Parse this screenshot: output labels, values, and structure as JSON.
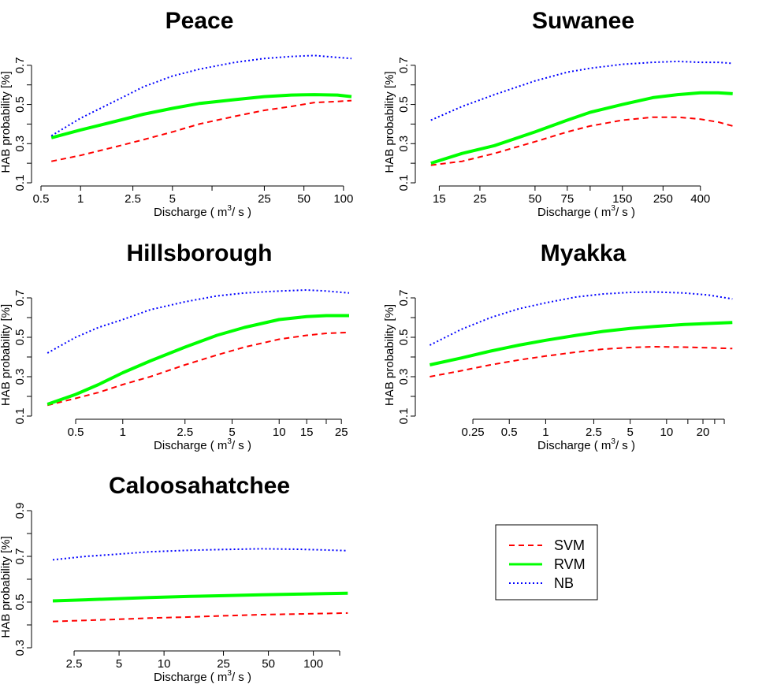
{
  "chart_data": [
    {
      "type": "line",
      "title": "Peace",
      "xlabel": "Discharge ( m3/ s )",
      "ylabel": "HAB probability [%]",
      "x_scale": "log",
      "xlim": [
        0.5,
        115
      ],
      "ylim": [
        0.1,
        0.8
      ],
      "xticks": [
        0.5,
        1,
        2.5,
        5,
        10,
        25,
        50,
        100
      ],
      "xtick_labels": [
        "0.5",
        "1",
        "2.5",
        "5",
        "",
        "25",
        "50",
        "100"
      ],
      "yticks": [
        0.1,
        0.2,
        0.3,
        0.4,
        0.5,
        0.6,
        0.7
      ],
      "ytick_labels": [
        "0.1",
        "",
        "0.3",
        "",
        "0.5",
        "",
        "0.7"
      ],
      "x": [
        0.6,
        1,
        2,
        3,
        5,
        8,
        15,
        25,
        40,
        60,
        90,
        115
      ],
      "series": [
        {
          "name": "SVM",
          "values": [
            0.21,
            0.24,
            0.29,
            0.32,
            0.36,
            0.4,
            0.44,
            0.47,
            0.49,
            0.51,
            0.515,
            0.52
          ]
        },
        {
          "name": "RVM",
          "values": [
            0.33,
            0.37,
            0.42,
            0.45,
            0.48,
            0.505,
            0.525,
            0.54,
            0.548,
            0.55,
            0.548,
            0.54
          ]
        },
        {
          "name": "NB",
          "values": [
            0.34,
            0.43,
            0.53,
            0.59,
            0.645,
            0.68,
            0.715,
            0.735,
            0.745,
            0.75,
            0.74,
            0.735
          ]
        }
      ]
    },
    {
      "type": "line",
      "title": "Suwanee",
      "xlabel": "Discharge ( m3/ s )",
      "ylabel": "HAB probability [%]",
      "x_scale": "log",
      "xlim": [
        12.5,
        620
      ],
      "ylim": [
        0.1,
        0.8
      ],
      "xticks": [
        15,
        25,
        50,
        75,
        100,
        150,
        250,
        400
      ],
      "xtick_labels": [
        "15",
        "25",
        "50",
        "75",
        "",
        "150",
        "250",
        "400"
      ],
      "yticks": [
        0.1,
        0.2,
        0.3,
        0.4,
        0.5,
        0.6,
        0.7
      ],
      "ytick_labels": [
        "0.1",
        "",
        "0.3",
        "",
        "0.5",
        "",
        "0.7"
      ],
      "x": [
        13.5,
        20,
        30,
        50,
        75,
        100,
        150,
        220,
        300,
        400,
        500,
        600
      ],
      "series": [
        {
          "name": "SVM",
          "values": [
            0.19,
            0.21,
            0.25,
            0.31,
            0.36,
            0.39,
            0.42,
            0.435,
            0.435,
            0.425,
            0.41,
            0.39
          ]
        },
        {
          "name": "RVM",
          "values": [
            0.2,
            0.25,
            0.29,
            0.36,
            0.42,
            0.46,
            0.5,
            0.535,
            0.55,
            0.56,
            0.56,
            0.555
          ]
        },
        {
          "name": "NB",
          "values": [
            0.42,
            0.49,
            0.55,
            0.62,
            0.665,
            0.685,
            0.705,
            0.715,
            0.72,
            0.715,
            0.715,
            0.71
          ]
        }
      ]
    },
    {
      "type": "line",
      "title": "Hillsborough",
      "xlabel": "Discharge ( m3/ s )",
      "ylabel": "HAB probability [%]",
      "x_scale": "log",
      "xlim": [
        0.3,
        29
      ],
      "ylim": [
        0.1,
        0.8
      ],
      "xticks": [
        0.5,
        1,
        2.5,
        5,
        10,
        15,
        20,
        25
      ],
      "xtick_labels": [
        "0.5",
        "1",
        "2.5",
        "5",
        "10",
        "15",
        "",
        "25"
      ],
      "yticks": [
        0.1,
        0.2,
        0.3,
        0.4,
        0.5,
        0.6,
        0.7
      ],
      "ytick_labels": [
        "0.1",
        "",
        "0.3",
        "",
        "0.5",
        "",
        "0.7"
      ],
      "x": [
        0.33,
        0.5,
        0.7,
        1,
        1.5,
        2.5,
        4,
        6,
        10,
        15,
        20,
        28
      ],
      "series": [
        {
          "name": "SVM",
          "values": [
            0.155,
            0.19,
            0.22,
            0.26,
            0.3,
            0.36,
            0.41,
            0.45,
            0.49,
            0.51,
            0.52,
            0.525
          ]
        },
        {
          "name": "RVM",
          "values": [
            0.16,
            0.21,
            0.26,
            0.32,
            0.38,
            0.45,
            0.51,
            0.55,
            0.59,
            0.605,
            0.61,
            0.61
          ]
        },
        {
          "name": "NB",
          "values": [
            0.42,
            0.5,
            0.55,
            0.59,
            0.64,
            0.68,
            0.71,
            0.725,
            0.735,
            0.74,
            0.735,
            0.725
          ]
        }
      ]
    },
    {
      "type": "line",
      "title": "Myakka",
      "xlabel": "Discharge ( m3/ s )",
      "ylabel": "HAB probability [%]",
      "x_scale": "log",
      "xlim": [
        0.1,
        37
      ],
      "ylim": [
        0.1,
        0.8
      ],
      "xticks": [
        0.25,
        0.5,
        1,
        2.5,
        5,
        10,
        15,
        20,
        25,
        30
      ],
      "xtick_labels": [
        "0.25",
        "0.5",
        "1",
        "2.5",
        "5",
        "10",
        "",
        "20",
        "",
        ""
      ],
      "yticks": [
        0.1,
        0.2,
        0.3,
        0.4,
        0.5,
        0.6,
        0.7
      ],
      "ytick_labels": [
        "0.1",
        "",
        "0.3",
        "",
        "0.5",
        "",
        "0.7"
      ],
      "x": [
        0.11,
        0.2,
        0.35,
        0.6,
        1,
        1.8,
        3,
        5,
        8,
        14,
        22,
        35
      ],
      "series": [
        {
          "name": "SVM",
          "values": [
            0.3,
            0.33,
            0.36,
            0.385,
            0.405,
            0.425,
            0.44,
            0.448,
            0.452,
            0.45,
            0.447,
            0.443
          ]
        },
        {
          "name": "RVM",
          "values": [
            0.36,
            0.395,
            0.43,
            0.46,
            0.485,
            0.51,
            0.53,
            0.545,
            0.555,
            0.565,
            0.57,
            0.575
          ]
        },
        {
          "name": "NB",
          "values": [
            0.46,
            0.54,
            0.6,
            0.645,
            0.675,
            0.705,
            0.72,
            0.728,
            0.73,
            0.725,
            0.715,
            0.695
          ]
        }
      ]
    },
    {
      "type": "line",
      "title": "Caloosahatchee",
      "xlabel": "Discharge ( m3/ s )",
      "ylabel": "HAB probability [%]",
      "x_scale": "log",
      "xlim": [
        1.5,
        180
      ],
      "ylim": [
        0.3,
        0.9
      ],
      "xticks": [
        2.5,
        5,
        10,
        25,
        50,
        100,
        150
      ],
      "xtick_labels": [
        "2.5",
        "5",
        "10",
        "25",
        "50",
        "100",
        ""
      ],
      "yticks": [
        0.3,
        0.4,
        0.5,
        0.6,
        0.7,
        0.8,
        0.9
      ],
      "ytick_labels": [
        "0.3",
        "",
        "0.5",
        "",
        "0.7",
        "",
        "0.9"
      ],
      "x": [
        1.8,
        3,
        5,
        8,
        15,
        25,
        45,
        80,
        120,
        170
      ],
      "series": [
        {
          "name": "SVM",
          "values": [
            0.415,
            0.42,
            0.425,
            0.43,
            0.435,
            0.44,
            0.445,
            0.448,
            0.45,
            0.452
          ]
        },
        {
          "name": "RVM",
          "values": [
            0.505,
            0.51,
            0.515,
            0.52,
            0.525,
            0.528,
            0.532,
            0.535,
            0.537,
            0.539
          ]
        },
        {
          "name": "NB",
          "values": [
            0.685,
            0.7,
            0.71,
            0.72,
            0.727,
            0.73,
            0.733,
            0.731,
            0.728,
            0.725
          ]
        }
      ]
    }
  ],
  "legend": {
    "placement": "bottom-right",
    "items": [
      {
        "label": "SVM",
        "color": "#ff0000",
        "style": "dashed"
      },
      {
        "label": "RVM",
        "color": "#00ff00",
        "style": "solid"
      },
      {
        "label": "NB",
        "color": "#0000ff",
        "style": "dotted"
      }
    ]
  },
  "series_styles": {
    "SVM": {
      "color": "#ff0000",
      "style": "dashed"
    },
    "RVM": {
      "color": "#00ff00",
      "style": "solid"
    },
    "NB": {
      "color": "#0000ff",
      "style": "dotted"
    }
  },
  "xlabel_parts": {
    "prefix": "Discharge ( m",
    "sup": "3",
    "suffix": "/ s )"
  }
}
